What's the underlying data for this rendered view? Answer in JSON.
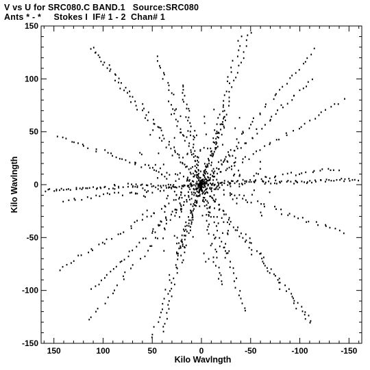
{
  "chart_data": {
    "type": "scatter",
    "title_line1": "V vs U for SRC080.C BAND.1   Source:SRC080",
    "title_line2": "Ants * - *     Stokes I  IF# 1 - 2  Chan# 1",
    "xlabel": "Kilo Wavlngth",
    "ylabel": "Kilo Wavlngth",
    "xlim": [
      163,
      -163
    ],
    "ylim": [
      -150,
      150
    ],
    "x_ticks": [
      150,
      100,
      50,
      0,
      -50,
      -100,
      -150
    ],
    "y_ticks": [
      150,
      100,
      50,
      0,
      -50,
      -100,
      -150
    ],
    "tick_labels_x": [
      "150",
      "100",
      "50",
      "0",
      "-50",
      "-100",
      "-150"
    ],
    "tick_labels_y": [
      "150",
      "100",
      "50",
      "0",
      "-50",
      "-100",
      "-150"
    ],
    "grid": false,
    "marker_color": "#000000",
    "arms_endpoints": [
      {
        "u": -50,
        "v": 145
      },
      {
        "u": -115,
        "v": 128
      },
      {
        "u": -145,
        "v": 80
      },
      {
        "u": -160,
        "v": 5
      },
      {
        "u": -145,
        "v": -45
      },
      {
        "u": -112,
        "v": -128
      },
      {
        "u": -45,
        "v": -120
      },
      {
        "u": 40,
        "v": -140
      },
      {
        "u": 112,
        "v": -100
      },
      {
        "u": 140,
        "v": -15
      },
      {
        "u": 155,
        "v": -5
      },
      {
        "u": 110,
        "v": 130
      },
      {
        "u": 20,
        "v": 95
      },
      {
        "u": 25,
        "v": -65
      }
    ]
  }
}
